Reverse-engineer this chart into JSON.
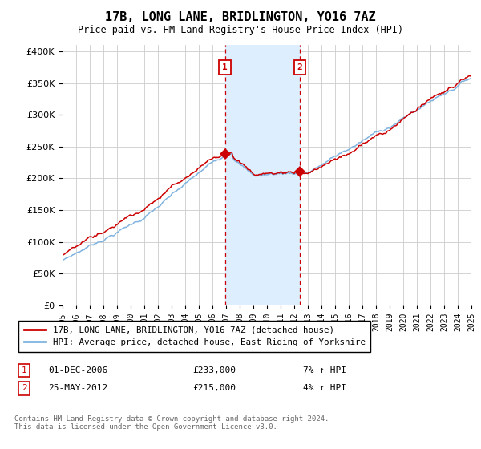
{
  "title": "17B, LONG LANE, BRIDLINGTON, YO16 7AZ",
  "subtitle": "Price paid vs. HM Land Registry's House Price Index (HPI)",
  "legend_line1": "17B, LONG LANE, BRIDLINGTON, YO16 7AZ (detached house)",
  "legend_line2": "HPI: Average price, detached house, East Riding of Yorkshire",
  "annotation1_label": "1",
  "annotation1_date": "01-DEC-2006",
  "annotation1_price": "£233,000",
  "annotation1_hpi": "7% ↑ HPI",
  "annotation2_label": "2",
  "annotation2_date": "25-MAY-2012",
  "annotation2_price": "£215,000",
  "annotation2_hpi": "4% ↑ HPI",
  "footnote": "Contains HM Land Registry data © Crown copyright and database right 2024.\nThis data is licensed under the Open Government Licence v3.0.",
  "sale1_year": 2006.92,
  "sale2_year": 2012.4,
  "sale1_value": 233000,
  "sale2_value": 215000,
  "hpi_color": "#7fb3e0",
  "price_color": "#cc0000",
  "shade_color": "#ddeeff",
  "background_color": "#ffffff",
  "ylim": [
    0,
    410000
  ],
  "yticks": [
    0,
    50000,
    100000,
    150000,
    200000,
    250000,
    300000,
    350000,
    400000
  ],
  "xlim": [
    1995,
    2025
  ]
}
